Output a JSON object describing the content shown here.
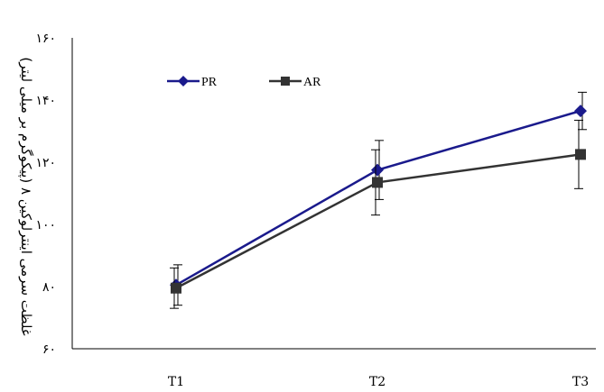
{
  "chart_data": {
    "type": "line",
    "categories": [
      "T1",
      "T2",
      "T3"
    ],
    "series": [
      {
        "name": "PR",
        "values": [
          80.5,
          117.5,
          136.5
        ],
        "error": [
          6.5,
          9.5,
          6.0
        ],
        "color": "#1a1a8c",
        "marker": "diamond"
      },
      {
        "name": "AR",
        "values": [
          79.5,
          113.5,
          122.5
        ],
        "error": [
          6.5,
          10.5,
          11.0
        ],
        "color": "#333333",
        "marker": "square"
      }
    ],
    "xlabel": "",
    "ylabel": "غلظت سرمی اینترلوکین ۸ (پیکوگرم بر میلی لیتر)",
    "ylim": [
      60,
      160
    ],
    "yticks": [
      60,
      80,
      100,
      120,
      140,
      160
    ],
    "ytick_labels": [
      "۶۰",
      "۸۰",
      "۱۰۰",
      "۱۲۰",
      "۱۴۰",
      "۱۶۰"
    ],
    "grid": false,
    "legend": "top-left"
  }
}
